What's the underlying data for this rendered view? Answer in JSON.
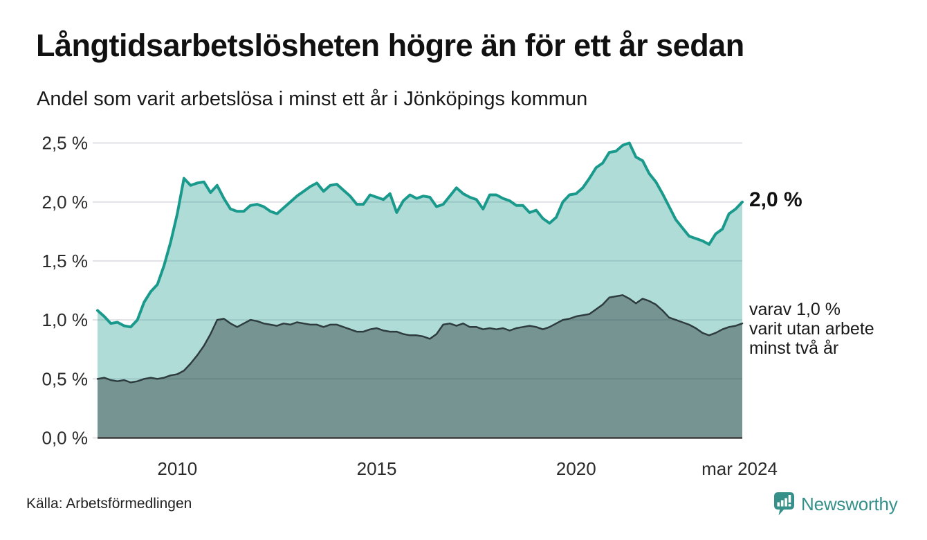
{
  "header": {
    "title": "Långtidsarbetslösheten högre än för ett år sedan",
    "subtitle": "Andel som varit arbetslösa i minst ett år i Jönköpings kommun"
  },
  "chart_data": {
    "type": "area",
    "title": "Långtidsarbetslösheten högre än för ett år sedan",
    "subtitle": "Andel som varit arbetslösa i minst ett år i Jönköpings kommun",
    "x_unit": "decimal_year",
    "x_start": 2008.0,
    "x_step": 0.1666667,
    "x_end": 2024.1667,
    "ylim": [
      0,
      2.5
    ],
    "grid": true,
    "legend_position": "direct-labels-right",
    "y_ticks": [
      {
        "value": 0.0,
        "label": "0,0 %"
      },
      {
        "value": 0.5,
        "label": "0,5 %"
      },
      {
        "value": 1.0,
        "label": "1,0 %"
      },
      {
        "value": 1.5,
        "label": "1,5 %"
      },
      {
        "value": 2.0,
        "label": "2,0 %"
      },
      {
        "value": 2.5,
        "label": "2,5 %"
      }
    ],
    "x_ticks": [
      {
        "value": 2010,
        "label": "2010"
      },
      {
        "value": 2015,
        "label": "2015"
      },
      {
        "value": 2020,
        "label": "2020"
      },
      {
        "value": 2024.1667,
        "label": "mar 2024"
      }
    ],
    "series": [
      {
        "id": "minst_ett_ar",
        "name": "arbetslösa minst ett år",
        "end_value": "2,0 %",
        "values": [
          1.08,
          1.03,
          0.97,
          0.98,
          0.95,
          0.94,
          1.0,
          1.15,
          1.24,
          1.3,
          1.46,
          1.66,
          1.9,
          2.2,
          2.14,
          2.16,
          2.17,
          2.08,
          2.14,
          2.03,
          1.94,
          1.92,
          1.92,
          1.97,
          1.98,
          1.96,
          1.92,
          1.9,
          1.95,
          2.0,
          2.05,
          2.09,
          2.13,
          2.16,
          2.09,
          2.14,
          2.15,
          2.1,
          2.05,
          1.98,
          1.98,
          2.06,
          2.04,
          2.02,
          2.07,
          1.91,
          2.01,
          2.06,
          2.03,
          2.05,
          2.04,
          1.96,
          1.98,
          2.05,
          2.12,
          2.07,
          2.04,
          2.02,
          1.94,
          2.06,
          2.06,
          2.03,
          2.01,
          1.97,
          1.97,
          1.91,
          1.93,
          1.86,
          1.82,
          1.87,
          2.0,
          2.06,
          2.07,
          2.12,
          2.2,
          2.29,
          2.33,
          2.42,
          2.43,
          2.48,
          2.5,
          2.38,
          2.35,
          2.24,
          2.17,
          2.07,
          1.96,
          1.85,
          1.78,
          1.71,
          1.69,
          1.67,
          1.64,
          1.73,
          1.77,
          1.9,
          1.94,
          2.0
        ]
      },
      {
        "id": "minst_tva_ar",
        "name": "varav utan arbete minst två år",
        "end_value": "1,0 %",
        "values": [
          0.5,
          0.51,
          0.49,
          0.48,
          0.49,
          0.47,
          0.48,
          0.5,
          0.51,
          0.5,
          0.51,
          0.53,
          0.54,
          0.57,
          0.63,
          0.7,
          0.78,
          0.88,
          1.0,
          1.01,
          0.97,
          0.94,
          0.97,
          1.0,
          0.99,
          0.97,
          0.96,
          0.95,
          0.97,
          0.96,
          0.98,
          0.97,
          0.96,
          0.96,
          0.94,
          0.96,
          0.96,
          0.94,
          0.92,
          0.9,
          0.9,
          0.92,
          0.93,
          0.91,
          0.9,
          0.9,
          0.88,
          0.87,
          0.87,
          0.86,
          0.84,
          0.88,
          0.96,
          0.97,
          0.95,
          0.97,
          0.94,
          0.94,
          0.92,
          0.93,
          0.92,
          0.93,
          0.91,
          0.93,
          0.94,
          0.95,
          0.94,
          0.92,
          0.94,
          0.97,
          1.0,
          1.01,
          1.03,
          1.04,
          1.05,
          1.09,
          1.13,
          1.19,
          1.2,
          1.21,
          1.18,
          1.14,
          1.18,
          1.16,
          1.13,
          1.08,
          1.02,
          1.0,
          0.98,
          0.96,
          0.93,
          0.89,
          0.87,
          0.89,
          0.92,
          0.94,
          0.95,
          0.97
        ]
      }
    ],
    "annotations": {
      "end_label_total": "2,0 %",
      "two_year_note_lines": [
        "varav 1,0 %",
        "varit utan arbete",
        "minst två år"
      ]
    }
  },
  "footer": {
    "source": "Källa: Arbetsförmedlingen",
    "logo_text": "Newsworthy"
  },
  "theme": {
    "line_total": "#1a9a8c",
    "fill_total": "rgba(26,154,140,0.35)",
    "line_two_year": "#2e3c3f",
    "fill_two_year": "rgba(46,60,63,0.45)",
    "gridline": "#e1e1e5",
    "axis_line": "#3d3d3d",
    "text": "#1a1a1a",
    "tick_text": "#2b2b2b",
    "brand_teal": "#35908a",
    "background": "#ffffff"
  }
}
